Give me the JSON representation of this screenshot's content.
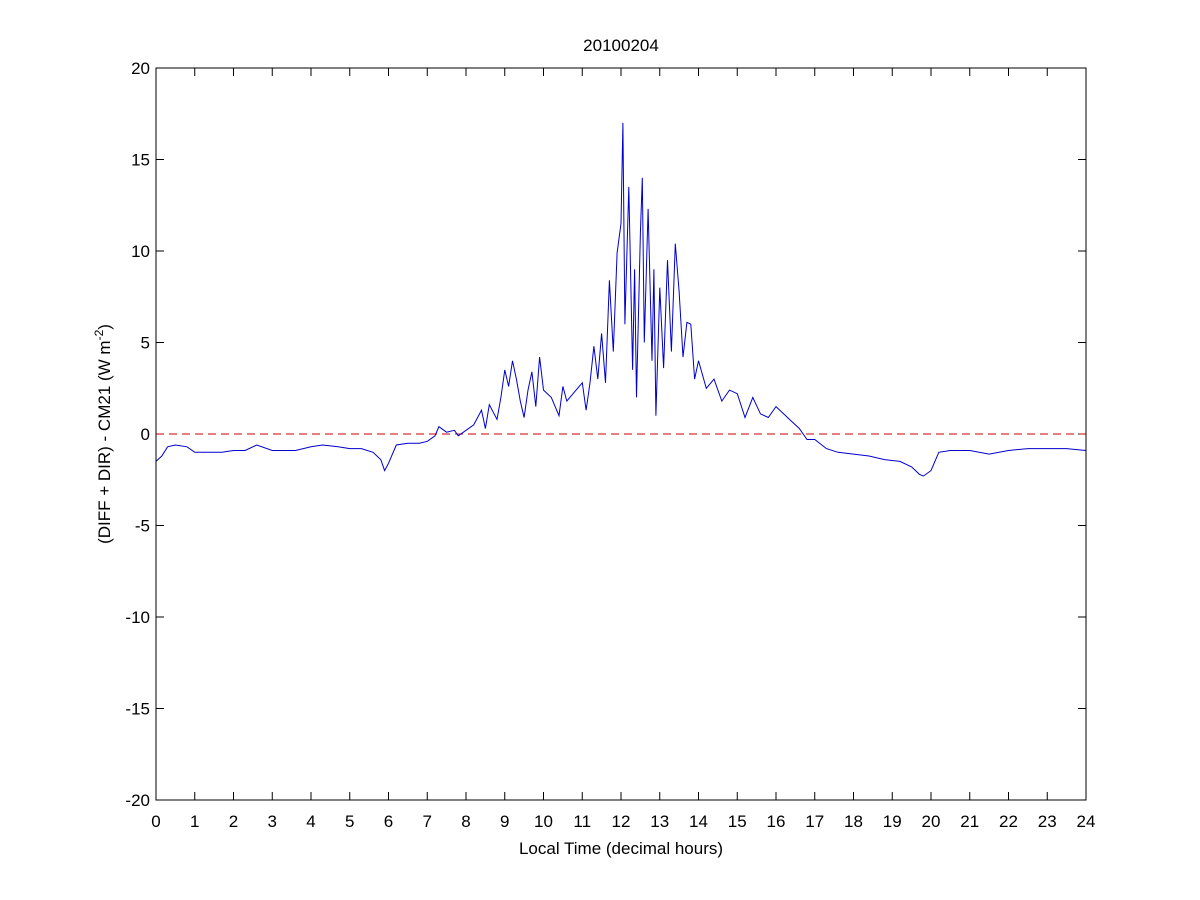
{
  "chart_data": {
    "type": "line",
    "title": "20100204",
    "xlabel": "Local Time (decimal hours)",
    "ylabel_main": "(DIFF + DIR) - CM21 (W m",
    "ylabel_sup": "-2",
    "ylabel_close": ")",
    "xlim": [
      0,
      24
    ],
    "ylim": [
      -20,
      20
    ],
    "xticks": [
      0,
      1,
      2,
      3,
      4,
      5,
      6,
      7,
      8,
      9,
      10,
      11,
      12,
      13,
      14,
      15,
      16,
      17,
      18,
      19,
      20,
      21,
      22,
      23,
      24
    ],
    "yticks": [
      -20,
      -15,
      -10,
      -5,
      0,
      5,
      10,
      15,
      20
    ],
    "grid": false,
    "reference_line": {
      "y": 0,
      "color": "#cc0000",
      "style": "dashed"
    },
    "series": [
      {
        "color": "#0000cc",
        "x": [
          0,
          0.15,
          0.3,
          0.5,
          0.8,
          1.0,
          1.3,
          1.7,
          2.0,
          2.3,
          2.6,
          3.0,
          3.3,
          3.6,
          4.0,
          4.3,
          4.7,
          5.0,
          5.3,
          5.6,
          5.8,
          5.9,
          6.0,
          6.2,
          6.5,
          6.8,
          7.0,
          7.2,
          7.3,
          7.5,
          7.7,
          7.8,
          8.0,
          8.2,
          8.4,
          8.5,
          8.6,
          8.8,
          8.9,
          9.0,
          9.1,
          9.2,
          9.3,
          9.4,
          9.5,
          9.6,
          9.7,
          9.8,
          9.9,
          10.0,
          10.2,
          10.4,
          10.5,
          10.6,
          10.8,
          11.0,
          11.1,
          11.2,
          11.3,
          11.4,
          11.5,
          11.6,
          11.7,
          11.8,
          11.9,
          12.0,
          12.05,
          12.1,
          12.2,
          12.3,
          12.35,
          12.4,
          12.5,
          12.55,
          12.6,
          12.7,
          12.8,
          12.85,
          12.9,
          13.0,
          13.1,
          13.2,
          13.3,
          13.4,
          13.5,
          13.6,
          13.7,
          13.8,
          13.9,
          14.0,
          14.2,
          14.4,
          14.6,
          14.8,
          15.0,
          15.2,
          15.4,
          15.6,
          15.8,
          16.0,
          16.2,
          16.4,
          16.6,
          16.8,
          17.0,
          17.3,
          17.6,
          18.0,
          18.4,
          18.8,
          19.2,
          19.5,
          19.7,
          19.8,
          20.0,
          20.2,
          20.5,
          21.0,
          21.5,
          22.0,
          22.5,
          23.0,
          23.5,
          24.0
        ],
        "y": [
          -1.5,
          -1.2,
          -0.7,
          -0.6,
          -0.7,
          -1.0,
          -1.0,
          -1.0,
          -0.9,
          -0.9,
          -0.6,
          -0.9,
          -0.9,
          -0.9,
          -0.7,
          -0.6,
          -0.7,
          -0.8,
          -0.8,
          -1.0,
          -1.4,
          -2.0,
          -1.6,
          -0.6,
          -0.5,
          -0.5,
          -0.4,
          -0.1,
          0.4,
          0.1,
          0.2,
          -0.1,
          0.2,
          0.5,
          1.3,
          0.3,
          1.6,
          0.8,
          2.0,
          3.5,
          2.6,
          4.0,
          3.0,
          1.8,
          0.9,
          2.4,
          3.4,
          1.5,
          4.2,
          2.4,
          2.0,
          1.0,
          2.6,
          1.8,
          2.3,
          2.8,
          1.3,
          2.8,
          4.8,
          3.0,
          5.5,
          2.8,
          8.4,
          4.5,
          9.9,
          11.5,
          17.0,
          6.0,
          13.5,
          3.5,
          9.0,
          2.0,
          11.0,
          14.0,
          5.0,
          12.3,
          4.0,
          9.0,
          1.0,
          8.0,
          3.6,
          9.5,
          4.5,
          10.4,
          7.8,
          4.2,
          6.1,
          6.0,
          3.0,
          4.0,
          2.5,
          3.0,
          1.8,
          2.4,
          2.2,
          0.9,
          2.0,
          1.1,
          0.9,
          1.5,
          1.1,
          0.7,
          0.3,
          -0.3,
          -0.3,
          -0.8,
          -1.0,
          -1.1,
          -1.2,
          -1.4,
          -1.5,
          -1.8,
          -2.2,
          -2.3,
          -2.0,
          -1.0,
          -0.9,
          -0.9,
          -1.1,
          -0.9,
          -0.8,
          -0.8,
          -0.8,
          -0.9
        ]
      }
    ]
  }
}
